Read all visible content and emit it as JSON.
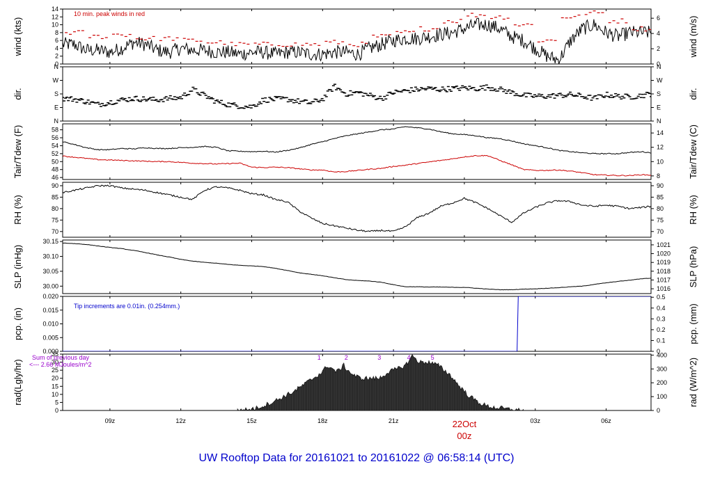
{
  "title": "UW Rooftop Data for 20161021  to  20161022 @ 06:58:14  (UTC)",
  "colors": {
    "main": "#000000",
    "red": "#cc0000",
    "blue": "#0000cc",
    "purple": "#9900cc"
  },
  "x_axis": {
    "unit": "hours since 2016-10-21 06:00Z",
    "range": [
      0.0,
      24.9
    ],
    "ticks": [
      {
        "v": 2,
        "label": "09z"
      },
      {
        "v": 5,
        "label": "12z"
      },
      {
        "v": 8,
        "label": "15z"
      },
      {
        "v": 11,
        "label": "18z"
      },
      {
        "v": 14,
        "label": "21z"
      },
      {
        "v": 17,
        "label": "",
        "date": "22Oct",
        "hour": "00z"
      },
      {
        "v": 20,
        "label": "03z"
      },
      {
        "v": 23,
        "label": "06z"
      }
    ]
  },
  "chart_data": [
    {
      "name": "wind",
      "type": "line",
      "ylabel": "wind (kts)",
      "ylabel_right": "wind (m/s)",
      "ylim": [
        0,
        14
      ],
      "yticks": [
        0,
        2,
        4,
        6,
        8,
        10,
        12,
        14
      ],
      "right_ticks": [
        {
          "v": 0,
          "label": "0"
        },
        {
          "v": 3.888,
          "label": "2"
        },
        {
          "v": 7.776,
          "label": "4"
        },
        {
          "v": 11.664,
          "label": "6"
        }
      ],
      "annotation": "10 min. peak winds in red",
      "series": [
        {
          "role": "speed",
          "color": "#000000",
          "x": [
            0,
            0.5,
            1,
            1.5,
            2,
            2.5,
            3,
            3.5,
            4,
            4.5,
            5,
            5.5,
            6,
            6.5,
            7,
            7.5,
            8,
            8.5,
            9,
            9.5,
            10,
            10.5,
            11,
            11.5,
            12,
            12.5,
            13,
            13.5,
            14,
            14.5,
            15,
            15.5,
            16,
            16.5,
            17,
            17.5,
            18,
            18.5,
            19,
            19.5,
            20,
            20.5,
            21,
            21.5,
            22,
            22.5,
            23,
            23.5,
            24,
            24.5,
            24.9
          ],
          "y": [
            5,
            5,
            3.5,
            3.5,
            3,
            4,
            5.5,
            5,
            3.5,
            3,
            4,
            3.5,
            3.5,
            3,
            3,
            2.5,
            3,
            3,
            2.5,
            3,
            3,
            2.5,
            2.5,
            3,
            3,
            2.5,
            4,
            5,
            6,
            6.5,
            6.5,
            7,
            7.5,
            8,
            9,
            10,
            10,
            9,
            7,
            6,
            4,
            2,
            1,
            6,
            9,
            10,
            8,
            7,
            8,
            8,
            8
          ]
        },
        {
          "role": "peak",
          "color": "#cc0000",
          "x": [
            0.5,
            1.5,
            2.5,
            3.5,
            4.5,
            5.5,
            6.5,
            7.5,
            8.5,
            9.5,
            10.5,
            11.5,
            12.5,
            13.5,
            14.5,
            15.5,
            16.5,
            17.5,
            18.5,
            19.5,
            20.5,
            21.5,
            22.5,
            23.5,
            24.5
          ],
          "y": [
            8,
            7,
            7.5,
            6.5,
            6.5,
            6,
            5.5,
            5,
            5,
            5,
            5,
            5.5,
            5,
            7,
            8,
            9,
            11,
            12.5,
            12,
            10,
            6,
            12,
            13,
            11,
            9
          ]
        }
      ]
    },
    {
      "name": "dir",
      "type": "scatter",
      "ylabel": "dir.",
      "ylabel_right": "dir.",
      "ylim": [
        0,
        360
      ],
      "yticks": [
        {
          "v": 0,
          "label": "N"
        },
        {
          "v": 90,
          "label": "E"
        },
        {
          "v": 180,
          "label": "S"
        },
        {
          "v": 270,
          "label": "W"
        },
        {
          "v": 360,
          "label": "N"
        }
      ],
      "series": [
        {
          "role": "direction",
          "color": "#000000",
          "x": [
            0,
            0.5,
            1,
            1.5,
            2,
            2.5,
            3,
            3.5,
            4,
            4.5,
            5,
            5.5,
            6,
            6.5,
            7,
            7.5,
            8,
            8.5,
            9,
            9.5,
            10,
            10.5,
            11,
            11.5,
            12,
            12.5,
            13,
            13.5,
            14,
            14.5,
            15,
            15.5,
            16,
            16.5,
            17,
            17.5,
            18,
            18.5,
            19,
            19.5,
            20,
            20.5,
            21,
            21.5,
            22,
            22.5,
            23,
            23.5,
            24,
            24.5,
            24.9
          ],
          "y": [
            150,
            145,
            130,
            110,
            125,
            140,
            150,
            145,
            140,
            150,
            155,
            210,
            170,
            130,
            110,
            100,
            95,
            140,
            145,
            145,
            130,
            120,
            145,
            230,
            180,
            190,
            170,
            150,
            190,
            200,
            210,
            215,
            210,
            215,
            220,
            215,
            225,
            210,
            190,
            170,
            165,
            165,
            170,
            175,
            165,
            150,
            175,
            165,
            160,
            170,
            180
          ]
        }
      ]
    },
    {
      "name": "temp",
      "type": "line",
      "ylabel": "Tair/Tdew (F)",
      "ylabel_right": "Tair/Tdew (C)",
      "ylim": [
        45.5,
        59.5
      ],
      "yticks": [
        46,
        48,
        50,
        52,
        54,
        56,
        58
      ],
      "right_ticks": [
        {
          "v": 46.4,
          "label": "8"
        },
        {
          "v": 50.0,
          "label": "10"
        },
        {
          "v": 53.6,
          "label": "12"
        },
        {
          "v": 57.2,
          "label": "14"
        }
      ],
      "series": [
        {
          "role": "air",
          "color": "#000000",
          "x": [
            0,
            0.5,
            1,
            1.5,
            2,
            2.5,
            3,
            3.5,
            4,
            4.5,
            5,
            5.5,
            6,
            6.5,
            7,
            7.5,
            8,
            8.5,
            9,
            9.5,
            10,
            10.5,
            11,
            11.5,
            12,
            12.5,
            13,
            13.5,
            14,
            14.5,
            15,
            15.5,
            16,
            16.5,
            17,
            17.5,
            18,
            18.5,
            19,
            19.5,
            20,
            20.5,
            21,
            21.5,
            22,
            22.5,
            23,
            23.5,
            24,
            24.5,
            24.9
          ],
          "y": [
            55,
            54.3,
            53.5,
            53,
            53,
            53.3,
            53.2,
            53.5,
            53.3,
            53.3,
            53.5,
            53.6,
            53.8,
            53.6,
            52.7,
            52.6,
            52.5,
            52.6,
            52.4,
            52.8,
            53.4,
            54.3,
            55,
            55.8,
            56.5,
            57,
            57.5,
            58,
            58.2,
            58.8,
            58.5,
            58.2,
            57.5,
            57,
            56.8,
            56.5,
            56,
            55.8,
            55.2,
            54.5,
            54,
            53.5,
            52.8,
            52.5,
            52.2,
            52,
            52,
            52,
            52.3,
            52.5,
            52.2
          ]
        },
        {
          "role": "dew",
          "color": "#cc0000",
          "x": [
            0,
            0.5,
            1,
            1.5,
            2,
            2.5,
            3,
            3.5,
            4,
            4.5,
            5,
            5.5,
            6,
            6.5,
            7,
            7.5,
            8,
            8.5,
            9,
            9.5,
            10,
            10.5,
            11,
            11.5,
            12,
            12.5,
            13,
            13.5,
            14,
            14.5,
            15,
            15.5,
            16,
            16.5,
            17,
            17.5,
            18,
            18.5,
            19,
            19.5,
            20,
            20.5,
            21,
            21.5,
            22,
            22.5,
            23,
            23.5,
            24,
            24.5,
            24.9
          ],
          "y": [
            51.4,
            51.1,
            50.8,
            50.5,
            50.4,
            50.3,
            50.2,
            50.1,
            50.0,
            50.0,
            49.8,
            49.6,
            49.5,
            49.4,
            49.5,
            49.6,
            48.6,
            48.5,
            48.6,
            48.5,
            48.2,
            47.9,
            47.9,
            47.4,
            47.5,
            47.8,
            48.1,
            48.3,
            48.8,
            49.1,
            49.5,
            49.9,
            50.3,
            50.7,
            51.2,
            51.5,
            51.5,
            50.3,
            49.2,
            48,
            47.8,
            47.8,
            47.9,
            47.6,
            47.2,
            46.7,
            46.6,
            46.5,
            46.5,
            46.7,
            46.6
          ]
        }
      ]
    },
    {
      "name": "rh",
      "type": "line",
      "ylabel": "RH (%)",
      "ylabel_right": "RH (%)",
      "ylim": [
        67.5,
        91.5
      ],
      "yticks": [
        70,
        75,
        80,
        85,
        90
      ],
      "series": [
        {
          "role": "rh",
          "color": "#000000",
          "x": [
            0,
            0.5,
            1,
            1.5,
            2,
            2.5,
            3,
            3.5,
            4,
            4.5,
            5,
            5.5,
            6,
            6.5,
            7,
            7.5,
            8,
            8.5,
            9,
            9.5,
            10,
            10.5,
            11,
            11.5,
            12,
            12.5,
            13,
            13.5,
            14,
            14.5,
            15,
            15.5,
            16,
            16.5,
            17,
            17.5,
            18,
            18.5,
            19,
            19.5,
            20,
            20.5,
            21,
            21.5,
            22,
            22.5,
            23,
            23.5,
            24,
            24.5,
            24.9
          ],
          "y": [
            87,
            88,
            89,
            90,
            90,
            89,
            88.5,
            88,
            87,
            86,
            85,
            84,
            88,
            89.5,
            89,
            88,
            86.5,
            86,
            84,
            83,
            79,
            76,
            73.5,
            72.5,
            71.5,
            70.5,
            70,
            70.5,
            70,
            72,
            76,
            78,
            81,
            82.5,
            84.5,
            82.5,
            80,
            77,
            74,
            78,
            80.5,
            82.5,
            83.5,
            83,
            81.5,
            81,
            81.5,
            81,
            80,
            80.5,
            81
          ]
        }
      ]
    },
    {
      "name": "slp",
      "type": "line",
      "ylabel": "SLP (inHg)",
      "ylabel_right": "SLP (hPa)",
      "ylim": [
        29.975,
        30.155
      ],
      "yticks": [
        {
          "v": 30.0,
          "label": "30.00"
        },
        {
          "v": 30.05,
          "label": "30.05"
        },
        {
          "v": 30.1,
          "label": "30.10"
        },
        {
          "v": 30.15,
          "label": "30.15"
        }
      ],
      "right_ticks": [
        {
          "v": 29.9912,
          "label": "1016"
        },
        {
          "v": 30.0207,
          "label": "1017"
        },
        {
          "v": 30.0502,
          "label": "1018"
        },
        {
          "v": 30.0797,
          "label": "1019"
        },
        {
          "v": 30.1093,
          "label": "1020"
        },
        {
          "v": 30.1388,
          "label": "1021"
        }
      ],
      "series": [
        {
          "role": "slp",
          "color": "#000000",
          "x": [
            0,
            0.5,
            1,
            1.5,
            2,
            2.5,
            3,
            3.5,
            4,
            4.5,
            5,
            5.5,
            6,
            6.5,
            7,
            7.5,
            8,
            8.5,
            9,
            9.5,
            10,
            10.5,
            11,
            11.5,
            12,
            12.5,
            13,
            13.5,
            14,
            14.5,
            15,
            15.5,
            16,
            16.5,
            17,
            17.5,
            18,
            18.5,
            19,
            19.5,
            20,
            20.5,
            21,
            21.5,
            22,
            22.5,
            23,
            23.5,
            24,
            24.5,
            24.9
          ],
          "y": [
            30.145,
            30.143,
            30.14,
            30.135,
            30.13,
            30.126,
            30.12,
            30.113,
            30.105,
            30.098,
            30.09,
            30.084,
            30.08,
            30.077,
            30.073,
            30.07,
            30.068,
            30.066,
            30.06,
            30.053,
            30.045,
            30.04,
            30.035,
            30.028,
            30.022,
            30.019,
            30.017,
            30.013,
            30.005,
            29.998,
            29.998,
            29.997,
            29.997,
            29.996,
            29.996,
            29.993,
            29.99,
            29.988,
            29.988,
            29.99,
            29.991,
            29.993,
            29.995,
            29.998,
            30.0,
            30.006,
            30.011,
            30.016,
            30.02,
            30.025,
            30.027
          ]
        }
      ]
    },
    {
      "name": "pcp",
      "type": "line",
      "ylabel": "pcp. (in)",
      "ylabel_right": "pcp. (mm)",
      "ylim": [
        0,
        0.02
      ],
      "yticks": [
        {
          "v": 0,
          "label": "0.000"
        },
        {
          "v": 0.005,
          "label": "0.005"
        },
        {
          "v": 0.01,
          "label": "0.010"
        },
        {
          "v": 0.015,
          "label": "0.015"
        },
        {
          "v": 0.02,
          "label": "0.020"
        }
      ],
      "right_ticks": [
        {
          "v": 0,
          "label": "0"
        },
        {
          "v": 0.003937,
          "label": "0.1"
        },
        {
          "v": 0.007874,
          "label": "0.2"
        },
        {
          "v": 0.011811,
          "label": "0.3"
        },
        {
          "v": 0.015748,
          "label": "0.4"
        },
        {
          "v": 0.019685,
          "label": "0.5"
        }
      ],
      "annotation": "Tip increments are 0.01in. (0.254mm.)",
      "series": [
        {
          "role": "precip",
          "color": "#0000cc",
          "x": [
            0,
            19.23,
            19.28,
            24.9
          ],
          "y": [
            0,
            0,
            0.02,
            0.02
          ]
        }
      ]
    },
    {
      "name": "rad",
      "type": "area",
      "ylabel": "rad(Lgly/hr)",
      "ylabel_right": "rad (W/m^2)",
      "ylim": [
        0,
        35
      ],
      "yticks": [
        0,
        5,
        10,
        15,
        20,
        25,
        30,
        35
      ],
      "right_ticks": [
        {
          "v": 0,
          "label": "0"
        },
        {
          "v": 8.6,
          "label": "100"
        },
        {
          "v": 17.2,
          "label": "200"
        },
        {
          "v": 25.8,
          "label": "300"
        },
        {
          "v": 34.4,
          "label": "400"
        }
      ],
      "annotation_lines": [
        "Sum of previous day",
        "<--- 2.66 MJoules/m^2"
      ],
      "markers": [
        {
          "x": 10.85,
          "label": "1"
        },
        {
          "x": 12.0,
          "label": "2"
        },
        {
          "x": 13.4,
          "label": "3"
        },
        {
          "x": 14.65,
          "label": "4"
        },
        {
          "x": 15.65,
          "label": "5"
        }
      ],
      "series": [
        {
          "role": "radiation",
          "color": "#000000",
          "x": [
            7.4,
            7.8,
            8.2,
            8.6,
            9.0,
            9.4,
            9.8,
            10.2,
            10.6,
            11.0,
            11.2,
            11.6,
            11.9,
            12.0,
            12.3,
            12.6,
            13.0,
            13.4,
            13.8,
            14.2,
            14.5,
            14.8,
            15.1,
            15.5,
            15.9,
            16.4,
            16.8,
            17.2,
            17.6,
            18.0,
            18.5,
            19.0,
            19.5
          ],
          "y": [
            0,
            0.5,
            1.5,
            3.5,
            6,
            9,
            12,
            16,
            20,
            24,
            28,
            24,
            28,
            26,
            22,
            20,
            20,
            20,
            24,
            26,
            28,
            34,
            30,
            30,
            28,
            22,
            15,
            9,
            5,
            2.5,
            1.5,
            0.5,
            0
          ]
        }
      ]
    }
  ]
}
